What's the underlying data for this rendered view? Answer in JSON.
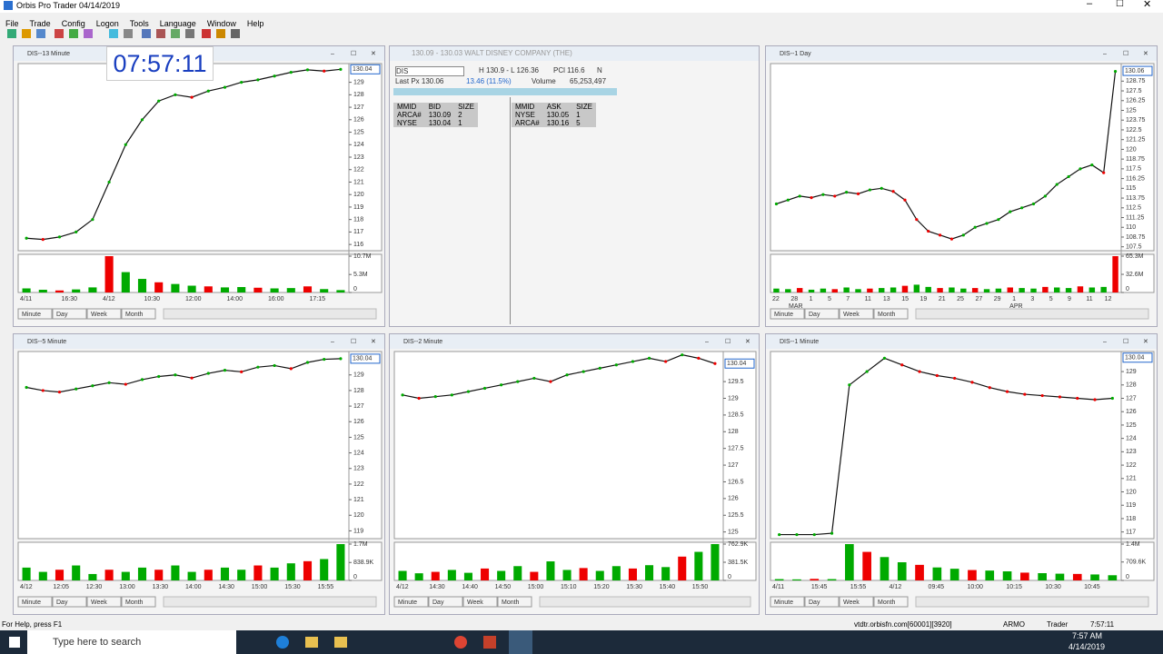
{
  "app": {
    "title": "Orbis Pro Trader 04/14/2019",
    "menu": [
      "File",
      "Trade",
      "Config",
      "Logon",
      "Tools",
      "Language",
      "Window",
      "Help"
    ],
    "clock": "07:57:11",
    "tabs": [
      "Minute",
      "Day",
      "Week",
      "Month"
    ]
  },
  "quote": {
    "header": "130.09 - 130.03  WALT DISNEY COMPANY (THE)",
    "symbol": "DIS",
    "range": "H 130.9 - L 126.36",
    "pcl": "PCl 116.6",
    "exch": "N",
    "last": "Last Px  130.06",
    "change": "13.46  (11.5%)",
    "volume_label": "Volume",
    "volume": "65,253,497",
    "bid_headers": [
      "MMID",
      "BID",
      "SIZE"
    ],
    "bid_rows": [
      [
        "ARCA#",
        "130.09",
        "2"
      ],
      [
        "NYSE",
        "130.04",
        "1"
      ]
    ],
    "ask_headers": [
      "MMID",
      "ASK",
      "SIZE"
    ],
    "ask_rows": [
      [
        "NYSE",
        "130.05",
        "1"
      ],
      [
        "ARCA#",
        "130.16",
        "5"
      ]
    ]
  },
  "charts": [
    {
      "title": "DIS--13 Minute",
      "ylim": [
        115.5,
        130.5
      ],
      "yticks": [
        129,
        128,
        127,
        126,
        125,
        124,
        123,
        122,
        121,
        120,
        119,
        118,
        117,
        116
      ],
      "last": 130.04,
      "prices": [
        116.5,
        116.4,
        116.6,
        117,
        118,
        121,
        124,
        126,
        127.5,
        128,
        127.8,
        128.3,
        128.6,
        129,
        129.2,
        129.5,
        129.8,
        130,
        129.9,
        130.04
      ],
      "vlim": [
        0,
        10700000
      ],
      "vticks": [
        {
          "value": 10700000,
          "label": "10.7M"
        },
        {
          "value": 5300000,
          "label": "5.3M"
        },
        0
      ],
      "volumes": [
        1200000,
        800000,
        600000,
        900000,
        1500000,
        10700000,
        6000000,
        4000000,
        3000000,
        2500000,
        2000000,
        1800000,
        1500000,
        1600000,
        1400000,
        1200000,
        1300000,
        1800000,
        1000000,
        700000
      ],
      "xlabels": [
        "4/11",
        "16:30",
        "4/12",
        "10:30",
        "12:00",
        "14:00",
        "16:00",
        "17:15"
      ]
    },
    {
      "title": "DIS--1 Day",
      "ylim": [
        107,
        131
      ],
      "yticks": [
        128.75,
        127.5,
        126.25,
        125,
        123.75,
        122.5,
        121.25,
        120,
        118.75,
        117.5,
        116.25,
        115,
        113.75,
        112.5,
        111.25,
        110,
        108.75,
        107.5
      ],
      "last": 130.06,
      "prices": [
        113,
        113.5,
        114,
        113.8,
        114.2,
        114,
        114.5,
        114.3,
        114.8,
        115,
        114.6,
        113.5,
        111,
        109.5,
        109,
        108.5,
        109,
        110,
        110.5,
        111,
        112,
        112.5,
        113,
        114,
        115.5,
        116.5,
        117.5,
        118,
        117,
        130
      ],
      "vlim": [
        0,
        65300000
      ],
      "vticks": [
        {
          "value": 65300000,
          "label": "65.3M"
        },
        {
          "value": 32600000,
          "label": "32.6M"
        },
        0
      ],
      "volumes": [
        7000000,
        6000000,
        8000000,
        5000000,
        7000000,
        6000000,
        9000000,
        6000000,
        7000000,
        8000000,
        9000000,
        12000000,
        14000000,
        10000000,
        8000000,
        9000000,
        7000000,
        8000000,
        6000000,
        7000000,
        9000000,
        8000000,
        7000000,
        10000000,
        9000000,
        8000000,
        11000000,
        9000000,
        10000000,
        65300000
      ],
      "xlabels": [
        "22",
        "28",
        "1",
        "5",
        "7",
        "11",
        "13",
        "15",
        "19",
        "21",
        "25",
        "27",
        "29",
        "1",
        "3",
        "5",
        "9",
        "11",
        "12"
      ],
      "xlabels2": [
        "MAR",
        "APR"
      ]
    },
    {
      "title": "DIS--5 Minute",
      "ylim": [
        118.5,
        130.5
      ],
      "yticks": [
        129,
        128,
        127,
        126,
        125,
        124,
        123,
        122,
        121,
        120,
        119
      ],
      "last": 130.04,
      "prices": [
        128.2,
        128,
        127.9,
        128.1,
        128.3,
        128.5,
        128.4,
        128.7,
        128.9,
        129,
        128.8,
        129.1,
        129.3,
        129.2,
        129.5,
        129.6,
        129.4,
        129.8,
        130,
        130.04
      ],
      "vlim": [
        0,
        1700000
      ],
      "vticks": [
        {
          "value": 1700000,
          "label": "1.7M"
        },
        {
          "value": 838900,
          "label": "838.9K"
        },
        0
      ],
      "volumes": [
        600000,
        400000,
        500000,
        700000,
        300000,
        500000,
        400000,
        600000,
        500000,
        700000,
        400000,
        500000,
        600000,
        500000,
        700000,
        600000,
        800000,
        900000,
        1000000,
        1700000
      ],
      "xlabels": [
        "4/12",
        "12:05",
        "12:30",
        "13:00",
        "13:30",
        "14:00",
        "14:30",
        "15:00",
        "15:30",
        "15:55"
      ]
    },
    {
      "title": "DIS--2 Minute",
      "ylim": [
        124.8,
        130.4
      ],
      "yticks": [
        129.5,
        129,
        128.5,
        128,
        127.5,
        127,
        126.5,
        126,
        125.5,
        125
      ],
      "last": 130.04,
      "prices": [
        129.1,
        129,
        129.05,
        129.1,
        129.2,
        129.3,
        129.4,
        129.5,
        129.6,
        129.5,
        129.7,
        129.8,
        129.9,
        130,
        130.1,
        130.2,
        130.1,
        130.3,
        130.2,
        130.04
      ],
      "vlim": [
        0,
        762900
      ],
      "vticks": [
        {
          "value": 762900,
          "label": "762.9K"
        },
        {
          "value": 381500,
          "label": "381.5K"
        },
        0
      ],
      "volumes": [
        200000,
        150000,
        180000,
        220000,
        160000,
        250000,
        200000,
        300000,
        180000,
        400000,
        220000,
        260000,
        200000,
        300000,
        250000,
        320000,
        280000,
        500000,
        600000,
        762900
      ],
      "xlabels": [
        "4/12",
        "14:30",
        "14:40",
        "14:50",
        "15:00",
        "15:10",
        "15:20",
        "15:30",
        "15:40",
        "15:50"
      ]
    },
    {
      "title": "DIS--1 Minute",
      "ylim": [
        116.5,
        130.5
      ],
      "yticks": [
        129,
        128,
        127,
        126,
        125,
        124,
        123,
        122,
        121,
        120,
        119,
        118,
        117
      ],
      "last": 130.04,
      "prices": [
        116.8,
        116.8,
        116.8,
        116.9,
        128,
        129,
        130,
        129.5,
        129,
        128.7,
        128.5,
        128.2,
        127.8,
        127.5,
        127.3,
        127.2,
        127.1,
        127,
        126.9,
        127
      ],
      "vlim": [
        0,
        1400000
      ],
      "vticks": [
        {
          "value": 1400000,
          "label": "1.4M"
        },
        {
          "value": 709600,
          "label": "709.6K"
        },
        0
      ],
      "volumes": [
        50000,
        40000,
        60000,
        50000,
        1400000,
        1100000,
        900000,
        700000,
        600000,
        500000,
        450000,
        400000,
        380000,
        350000,
        300000,
        280000,
        260000,
        250000,
        230000,
        200000
      ],
      "xlabels": [
        "4/11",
        "15:45",
        "15:55",
        "4/12",
        "09:45",
        "10:00",
        "10:15",
        "10:30",
        "10:45"
      ]
    }
  ],
  "status": {
    "help": "For Help, press F1",
    "server": "vtdtr.orbisfn.com[60001][3920]",
    "user": "ARMO",
    "role": "Trader",
    "time": "7:57:11"
  },
  "taskbar": {
    "search": "Type here to search",
    "time": "7:57 AM",
    "date": "4/14/2019"
  }
}
